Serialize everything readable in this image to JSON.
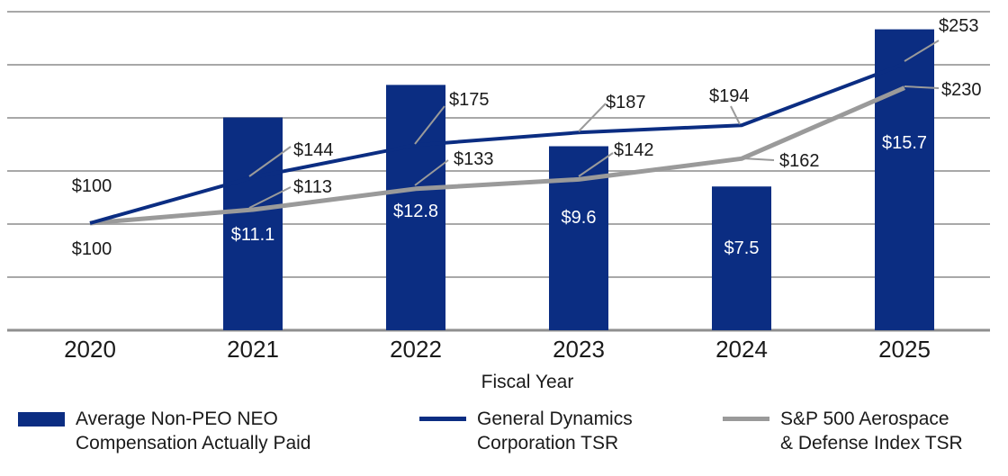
{
  "chart_data": {
    "type": "bar+line",
    "categories": [
      "2020",
      "2021",
      "2022",
      "2023",
      "2024",
      "2025"
    ],
    "xlabel": "Fiscal Year",
    "bars": {
      "name": "Average Non-PEO NEO Compensation Actually Paid",
      "color": "#0b2d82",
      "values": [
        null,
        11.1,
        12.8,
        9.6,
        7.5,
        15.7
      ],
      "labels": [
        "",
        "$11.1",
        "$12.8",
        "$9.6",
        "$7.5",
        "$15.7"
      ]
    },
    "series": [
      {
        "name": "General Dynamics Corporation TSR",
        "color": "#0b2d82",
        "values": [
          100,
          144,
          175,
          187,
          194,
          253
        ],
        "labels": [
          "$100",
          "$144",
          "$175",
          "$187",
          "$194",
          "$253"
        ]
      },
      {
        "name": "S&P 500 Aerospace & Defense Index TSR",
        "color": "#9a9a9a",
        "values": [
          100,
          113,
          133,
          142,
          162,
          230
        ],
        "labels": [
          "$100",
          "$113",
          "$133",
          "$142",
          "$162",
          "$230"
        ]
      }
    ]
  },
  "legend": {
    "bars": [
      "Average Non-PEO NEO",
      "Compensation Actually Paid"
    ],
    "gd": [
      "General Dynamics",
      "Corporation TSR"
    ],
    "sp": [
      "S&P 500 Aerospace",
      "& Defense Index TSR"
    ]
  }
}
